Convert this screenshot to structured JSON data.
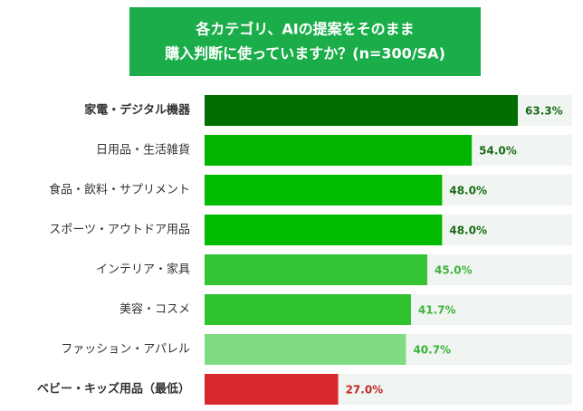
{
  "chart_data": {
    "type": "bar",
    "orientation": "horizontal",
    "title": [
      "各カテゴリ、AIの提案をそのまま",
      "購入判断に使っていますか？(n=300/SA)"
    ],
    "categories": [
      "家電・デジタル機器",
      "日用品・生活雑貨",
      "食品・飲料・サプリメント",
      "スポーツ・アウトドア用品",
      "インテリア・家具",
      "美容・コスメ",
      "ファッション・アパレル",
      "ベビー・キッズ用品（最低）"
    ],
    "values": [
      63.3,
      54.0,
      48.0,
      48.0,
      45.0,
      41.7,
      40.7,
      27.0
    ],
    "value_labels": [
      "63.3%",
      "54.0%",
      "48.0%",
      "48.0%",
      "45.0%",
      "41.7%",
      "40.7%",
      "27.0%"
    ],
    "colors": [
      "#006e00",
      "#00b400",
      "#00bb00",
      "#00bb00",
      "#33c433",
      "#2fc42f",
      "#80dc80",
      "#d9272e"
    ],
    "value_label_colors": [
      "#1a6b1a",
      "#1a6b1a",
      "#1a6b1a",
      "#1a6b1a",
      "#3cb43c",
      "#3cb43c",
      "#3cb43c",
      "#c0282c"
    ],
    "category_label_colors": [
      "#1a6b1a",
      "#333333",
      "#333333",
      "#333333",
      "#333333",
      "#333333",
      "#333333",
      "#d0282e"
    ],
    "title_color": "#1aad4a"
  }
}
